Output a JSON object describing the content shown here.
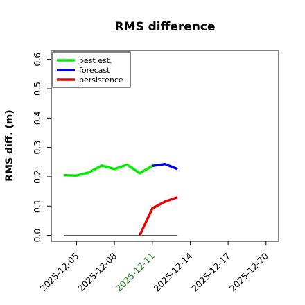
{
  "chart_data": {
    "type": "line",
    "title": "RMS difference",
    "xlabel": "",
    "ylabel": "RMS diff. (m)",
    "x_range": [
      "2025-12-03",
      "2025-12-21"
    ],
    "ylim": [
      -0.02,
      0.63
    ],
    "yticks": [
      0.0,
      0.1,
      0.2,
      0.3,
      0.4,
      0.5,
      0.6
    ],
    "ytick_labels": [
      "0.0",
      "0.1",
      "0.2",
      "0.3",
      "0.4",
      "0.5",
      "0.6"
    ],
    "xticks": [
      "2025-12-05",
      "2025-12-08",
      "2025-12-11",
      "2025-12-14",
      "2025-12-17",
      "2025-12-20"
    ],
    "xtick_labels": [
      "2025-12-05",
      "2025-12-08",
      "2025-12-11",
      "2025-12-14",
      "2025-12-17",
      "2025-12-20"
    ],
    "highlight_xtick": "2025-12-11",
    "highlight_color": "#1a8a1a",
    "legend_position": "top-left",
    "grid": false,
    "series": [
      {
        "name": "best est.",
        "color": "#00ee00",
        "x": [
          "2025-12-04",
          "2025-12-05",
          "2025-12-06",
          "2025-12-07",
          "2025-12-08",
          "2025-12-09",
          "2025-12-10",
          "2025-12-11"
        ],
        "values": [
          0.205,
          0.204,
          0.215,
          0.238,
          0.226,
          0.241,
          0.212,
          0.237
        ]
      },
      {
        "name": "forecast",
        "color": "#0000ee",
        "x": [
          "2025-12-11",
          "2025-12-12",
          "2025-12-13"
        ],
        "values": [
          0.237,
          0.243,
          0.226
        ]
      },
      {
        "name": "persistence",
        "color": "#ee0000",
        "x": [
          "2025-12-10",
          "2025-12-11",
          "2025-12-12",
          "2025-12-13"
        ],
        "values": [
          0.0,
          0.092,
          0.115,
          0.13
        ]
      }
    ],
    "reference_line": {
      "color": "#555555",
      "x": [
        "2025-12-04",
        "2025-12-13"
      ],
      "value": 0.0
    }
  }
}
